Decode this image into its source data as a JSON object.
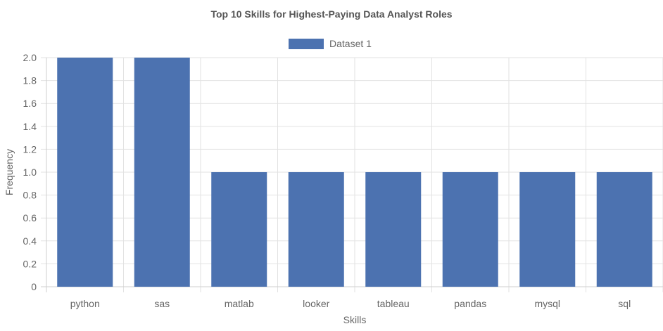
{
  "chart_data": {
    "type": "bar",
    "title": "Top 10 Skills for Highest-Paying Data Analyst Roles",
    "xlabel": "Skills",
    "ylabel": "Frequency",
    "categories": [
      "python",
      "sas",
      "matlab",
      "looker",
      "tableau",
      "pandas",
      "mysql",
      "sql"
    ],
    "series": [
      {
        "name": "Dataset 1",
        "values": [
          2,
          2,
          1,
          1,
          1,
          1,
          1,
          1
        ],
        "color": "#4c72b0"
      }
    ],
    "ylim": [
      0,
      2
    ],
    "yticks": [
      "0",
      "0.2",
      "0.4",
      "0.6",
      "0.8",
      "1.0",
      "1.2",
      "1.4",
      "1.6",
      "1.8",
      "2.0"
    ],
    "grid": true,
    "legend_position": "top-center"
  }
}
